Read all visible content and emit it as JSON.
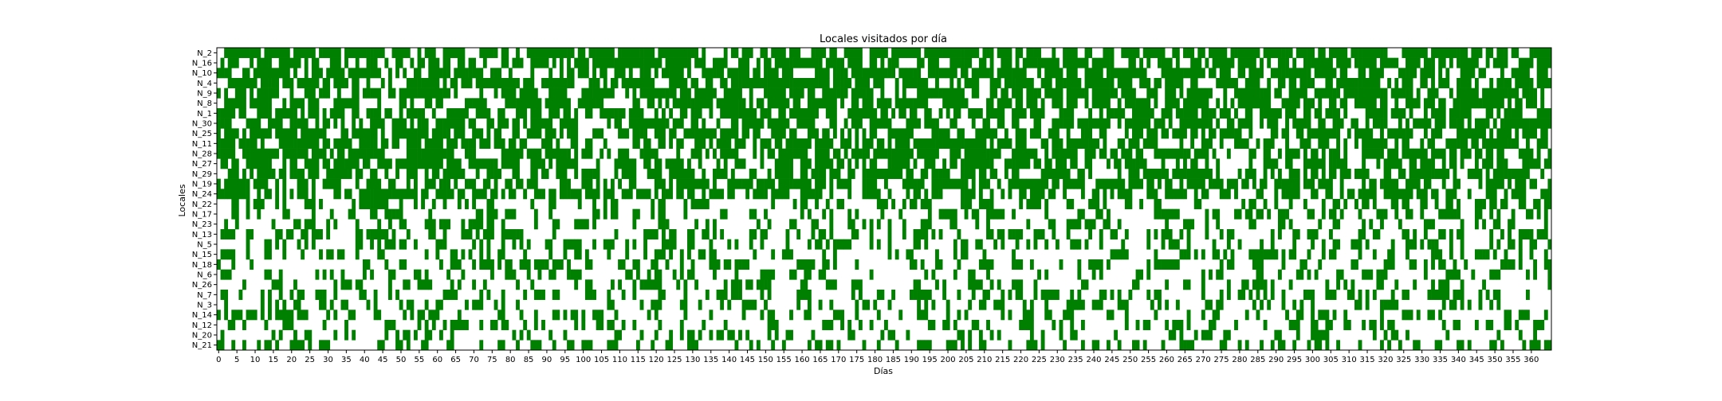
{
  "chart_data": {
    "type": "heatmap",
    "title": "Locales visitados por día",
    "xlabel": "Días",
    "ylabel": "Locales",
    "x_range": [
      0,
      365
    ],
    "x_ticks": [
      0,
      5,
      10,
      15,
      20,
      25,
      30,
      35,
      40,
      45,
      50,
      55,
      60,
      65,
      70,
      75,
      80,
      85,
      90,
      95,
      100,
      105,
      110,
      115,
      120,
      125,
      130,
      135,
      140,
      145,
      150,
      155,
      160,
      165,
      170,
      175,
      180,
      185,
      190,
      195,
      200,
      205,
      210,
      215,
      220,
      225,
      230,
      235,
      240,
      245,
      250,
      255,
      260,
      265,
      270,
      275,
      280,
      285,
      290,
      295,
      300,
      305,
      310,
      315,
      320,
      325,
      330,
      335,
      340,
      345,
      350,
      355,
      360
    ],
    "rows": [
      {
        "label": "N_2",
        "visit_rate": 0.62
      },
      {
        "label": "N_16",
        "visit_rate": 0.6
      },
      {
        "label": "N_10",
        "visit_rate": 0.6
      },
      {
        "label": "N_4",
        "visit_rate": 0.58
      },
      {
        "label": "N_9",
        "visit_rate": 0.58
      },
      {
        "label": "N_8",
        "visit_rate": 0.57
      },
      {
        "label": "N_1",
        "visit_rate": 0.57
      },
      {
        "label": "N_30",
        "visit_rate": 0.56
      },
      {
        "label": "N_25",
        "visit_rate": 0.56
      },
      {
        "label": "N_11",
        "visit_rate": 0.55
      },
      {
        "label": "N_28",
        "visit_rate": 0.55
      },
      {
        "label": "N_27",
        "visit_rate": 0.54
      },
      {
        "label": "N_29",
        "visit_rate": 0.54
      },
      {
        "label": "N_19",
        "visit_rate": 0.53
      },
      {
        "label": "N_24",
        "visit_rate": 0.52
      },
      {
        "label": "N_22",
        "visit_rate": 0.3
      },
      {
        "label": "N_17",
        "visit_rate": 0.3
      },
      {
        "label": "N_23",
        "visit_rate": 0.29
      },
      {
        "label": "N_13",
        "visit_rate": 0.29
      },
      {
        "label": "N_5",
        "visit_rate": 0.28
      },
      {
        "label": "N_15",
        "visit_rate": 0.28
      },
      {
        "label": "N_18",
        "visit_rate": 0.28
      },
      {
        "label": "N_6",
        "visit_rate": 0.27
      },
      {
        "label": "N_26",
        "visit_rate": 0.27
      },
      {
        "label": "N_7",
        "visit_rate": 0.27
      },
      {
        "label": "N_3",
        "visit_rate": 0.26
      },
      {
        "label": "N_14",
        "visit_rate": 0.26
      },
      {
        "label": "N_12",
        "visit_rate": 0.26
      },
      {
        "label": "N_20",
        "visit_rate": 0.25
      },
      {
        "label": "N_21",
        "visit_rate": 0.25
      }
    ],
    "colors": {
      "visited": "#008000",
      "not_visited": "#ffffff",
      "axis": "#000000"
    },
    "grid": false,
    "legend": "none"
  }
}
